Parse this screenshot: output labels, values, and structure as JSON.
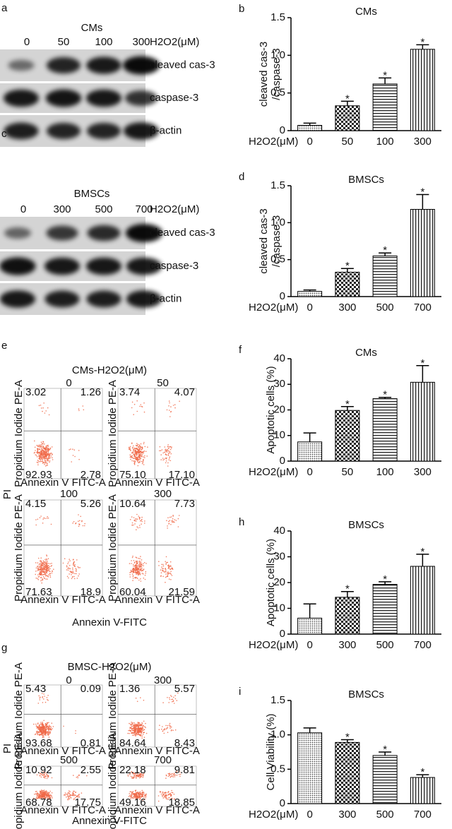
{
  "blots": [
    {
      "panel": "a",
      "title": "CMs",
      "unit": "H2O2(μM)",
      "lanes": [
        "0",
        "50",
        "100",
        "300"
      ],
      "rows": [
        "cleaved cas-3",
        "caspase-3",
        "β-actin"
      ]
    },
    {
      "panel": "c",
      "title": "BMSCs",
      "unit": "H2O2(μM)",
      "lanes": [
        "0",
        "300",
        "500",
        "700"
      ],
      "rows": [
        "cleaved cas-3",
        "caspase-3",
        "β-actin"
      ]
    }
  ],
  "flow": [
    {
      "panel": "e",
      "title": "CMs-H2O2(μM)",
      "ylabel": "PI",
      "xlabel": "Annexin V-FITC",
      "axis_x": "Annexin V FITC-A",
      "axis_y": "Propidium Iodide PE-A",
      "plots": [
        {
          "label": "0",
          "quadrants": [
            "3.02",
            "1.26",
            "92.93",
            "2.78"
          ]
        },
        {
          "label": "50",
          "quadrants": [
            "3.74",
            "4.07",
            "75.10",
            "17.10"
          ]
        },
        {
          "label": "100",
          "quadrants": [
            "4.15",
            "5.26",
            "71.63",
            "18.9"
          ]
        },
        {
          "label": "300",
          "quadrants": [
            "10.64",
            "7.73",
            "60.04",
            "21.59"
          ]
        }
      ]
    },
    {
      "panel": "g",
      "title": "BMSC-H2O2(μM)",
      "ylabel": "PI",
      "xlabel": "Annexin V-FITC",
      "axis_x": "Annexin V FITC-A",
      "axis_y": "Propidium Iodide PE-A",
      "plots": [
        {
          "label": "0",
          "quadrants": [
            "5.43",
            "0.09",
            "93.68",
            "0.81"
          ]
        },
        {
          "label": "300",
          "quadrants": [
            "1.36",
            "5.57",
            "84.64",
            "8.43"
          ]
        },
        {
          "label": "500",
          "quadrants": [
            "10.92",
            "2.55",
            "68.78",
            "17.75"
          ]
        },
        {
          "label": "700",
          "quadrants": [
            "22.18",
            "9.81",
            "49.16",
            "18.85"
          ]
        }
      ]
    }
  ],
  "chart_data": [
    {
      "type": "bar",
      "panel": "b",
      "title": "CMs",
      "ylabel": [
        "cleaved cas-3",
        "/caspase-3"
      ],
      "xlabel": "H2O2(μM)",
      "categories": [
        "0",
        "50",
        "100",
        "300"
      ],
      "values": [
        0.07,
        0.33,
        0.62,
        1.08
      ],
      "errors": [
        0.03,
        0.06,
        0.08,
        0.06
      ],
      "significance": [
        null,
        "*",
        "*",
        "*"
      ],
      "ylim": [
        0,
        1.5
      ],
      "yticks": [
        0,
        0.5,
        {
          "value": 1,
          "label": "1.0"
        },
        1.5
      ]
    },
    {
      "type": "bar",
      "panel": "d",
      "title": "BMSCs",
      "ylabel": [
        "cleaved cas-3",
        "/caspase-3"
      ],
      "xlabel": "H2O2(μM)",
      "categories": [
        "0",
        "300",
        "500",
        "700"
      ],
      "values": [
        0.07,
        0.33,
        0.55,
        1.18
      ],
      "errors": [
        0.02,
        0.05,
        0.04,
        0.2
      ],
      "significance": [
        null,
        "*",
        "*",
        "*"
      ],
      "ylim": [
        0,
        1.5
      ],
      "yticks": [
        0,
        0.5,
        {
          "value": 1,
          "label": "1.0"
        },
        1.5
      ]
    },
    {
      "type": "bar",
      "panel": "f",
      "title": "CMs",
      "ylabel": "Apoptotic cells (%)",
      "xlabel": "H2O2(μM)",
      "categories": [
        "0",
        "50",
        "100",
        "300"
      ],
      "values": [
        7.5,
        19.8,
        24.4,
        30.8
      ],
      "errors": [
        3.5,
        1.5,
        0.5,
        6.5
      ],
      "significance": [
        null,
        "*",
        "*",
        "*"
      ],
      "ylim": [
        0,
        40
      ],
      "yticks": [
        0,
        10,
        20,
        30,
        40
      ]
    },
    {
      "type": "bar",
      "panel": "h",
      "title": "BMSCs",
      "ylabel": "Apoptotic cells (%)",
      "xlabel": "H2O2(μM)",
      "categories": [
        "0",
        "300",
        "500",
        "700"
      ],
      "values": [
        6.2,
        14.3,
        19.3,
        26.3
      ],
      "errors": [
        5.5,
        2.2,
        1,
        4.7
      ],
      "significance": [
        null,
        "*",
        "*",
        "*"
      ],
      "ylim": [
        0,
        40
      ],
      "yticks": [
        0,
        10,
        20,
        30,
        40
      ]
    },
    {
      "type": "bar",
      "panel": "i",
      "title": "BMSCs",
      "ylabel": "Cell Viability (%)",
      "xlabel": "H2O2(μM)",
      "categories": [
        "0",
        "300",
        "500",
        "700"
      ],
      "values": [
        1.03,
        0.89,
        0.7,
        0.38
      ],
      "errors": [
        0.07,
        0.04,
        0.05,
        0.04
      ],
      "significance": [
        null,
        "*",
        "*",
        "*"
      ],
      "ylim": [
        0,
        1.5
      ],
      "yticks": [
        0,
        0.5,
        {
          "value": 1,
          "label": "1.0"
        },
        1.5
      ]
    }
  ]
}
